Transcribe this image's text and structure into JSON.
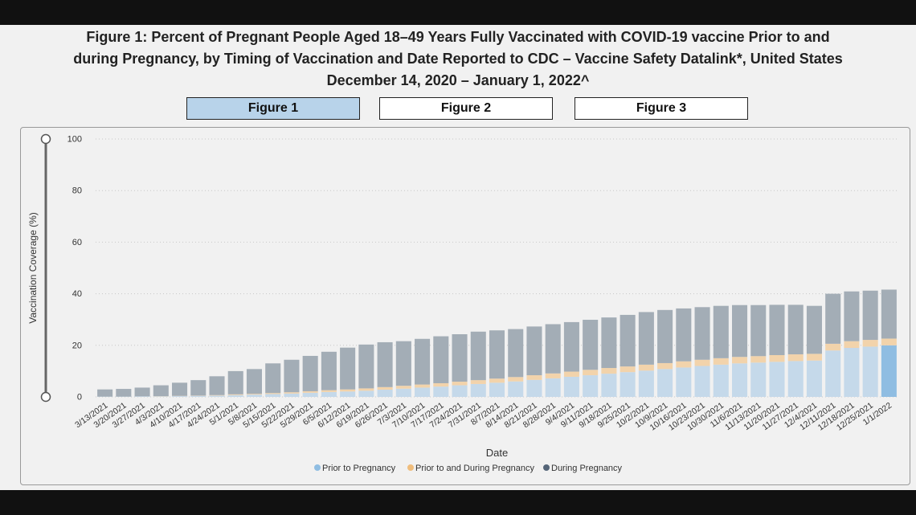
{
  "title": {
    "line1": "Figure 1: Percent of Pregnant People Aged 18–49 Years Fully Vaccinated with COVID-19 vaccine Prior to and",
    "line2": "during Pregnancy, by Timing of Vaccination and Date Reported to CDC – Vaccine Safety Datalink*, United States",
    "line3": "December 14, 2020 – January 1, 2022^"
  },
  "tabs": [
    {
      "label": "Figure 1",
      "active": true
    },
    {
      "label": "Figure 2",
      "active": false
    },
    {
      "label": "Figure 3",
      "active": false
    }
  ],
  "colors": {
    "prior": "#c5d9ea",
    "prior_highlight": "#8fbde2",
    "prior_during": "#f2d3ab",
    "during": "#a3adb6",
    "grid": "#c8c8c8",
    "text": "#333333"
  },
  "chart_data": {
    "type": "bar",
    "stacked": true,
    "xlabel": "Date",
    "ylabel": "Vaccination Coverage (%)",
    "ylim": [
      0,
      100
    ],
    "yticks": [
      0,
      20,
      40,
      60,
      80,
      100
    ],
    "grid": true,
    "legend_position": "bottom",
    "categories": [
      "3/13/2021",
      "3/20/2021",
      "3/27/2021",
      "4/3/2021",
      "4/10/2021",
      "4/17/2021",
      "4/24/2021",
      "5/1/2021",
      "5/8/2021",
      "5/15/2021",
      "5/22/2021",
      "5/29/2021",
      "6/5/2021",
      "6/12/2021",
      "6/19/2021",
      "6/26/2021",
      "7/3/2021",
      "7/10/2021",
      "7/17/2021",
      "7/24/2021",
      "7/31/2021",
      "8/7/2021",
      "8/14/2021",
      "8/21/2021",
      "8/28/2021",
      "9/4/2021",
      "9/11/2021",
      "9/18/2021",
      "9/25/2021",
      "10/2/2021",
      "10/9/2021",
      "10/16/2021",
      "10/23/2021",
      "10/30/2021",
      "11/6/2021",
      "11/13/2021",
      "11/20/2021",
      "11/27/2021",
      "12/4/2021",
      "12/11/2021",
      "12/18/2021",
      "12/25/2021",
      "1/1/2022"
    ],
    "series": [
      {
        "name": "Prior to Pregnancy",
        "values": [
          0.1,
          0.1,
          0.2,
          0.2,
          0.3,
          0.4,
          0.5,
          0.7,
          0.9,
          1.1,
          1.3,
          1.6,
          1.9,
          2.1,
          2.4,
          2.8,
          3.2,
          3.6,
          4.0,
          4.5,
          5.0,
          5.5,
          6.0,
          6.6,
          7.2,
          7.8,
          8.4,
          9.0,
          9.6,
          10.2,
          10.8,
          11.4,
          12.0,
          12.5,
          13.0,
          13.3,
          13.6,
          13.9,
          14.1,
          18.0,
          19.0,
          19.5,
          20.0
        ]
      },
      {
        "name": "Prior to and During Pregnancy",
        "values": [
          0.0,
          0.0,
          0.0,
          0.1,
          0.1,
          0.1,
          0.2,
          0.3,
          0.3,
          0.4,
          0.5,
          0.6,
          0.7,
          0.8,
          0.9,
          1.0,
          1.1,
          1.2,
          1.3,
          1.4,
          1.5,
          1.6,
          1.7,
          1.8,
          1.9,
          2.0,
          2.1,
          2.2,
          2.2,
          2.3,
          2.3,
          2.4,
          2.4,
          2.5,
          2.5,
          2.5,
          2.6,
          2.6,
          2.6,
          2.6,
          2.6,
          2.6,
          2.6
        ]
      },
      {
        "name": "During Pregnancy",
        "values": [
          2.8,
          3.0,
          3.4,
          4.2,
          5.1,
          6.0,
          7.3,
          9.0,
          9.6,
          11.5,
          12.6,
          13.7,
          14.9,
          16.2,
          17.0,
          17.4,
          17.3,
          17.7,
          18.2,
          18.4,
          18.8,
          18.7,
          18.6,
          18.9,
          19.1,
          19.2,
          19.4,
          19.6,
          20.0,
          20.4,
          20.6,
          20.5,
          20.4,
          20.3,
          20.1,
          19.8,
          19.5,
          19.2,
          18.6,
          19.4,
          19.3,
          19.1,
          19.0
        ]
      }
    ]
  }
}
